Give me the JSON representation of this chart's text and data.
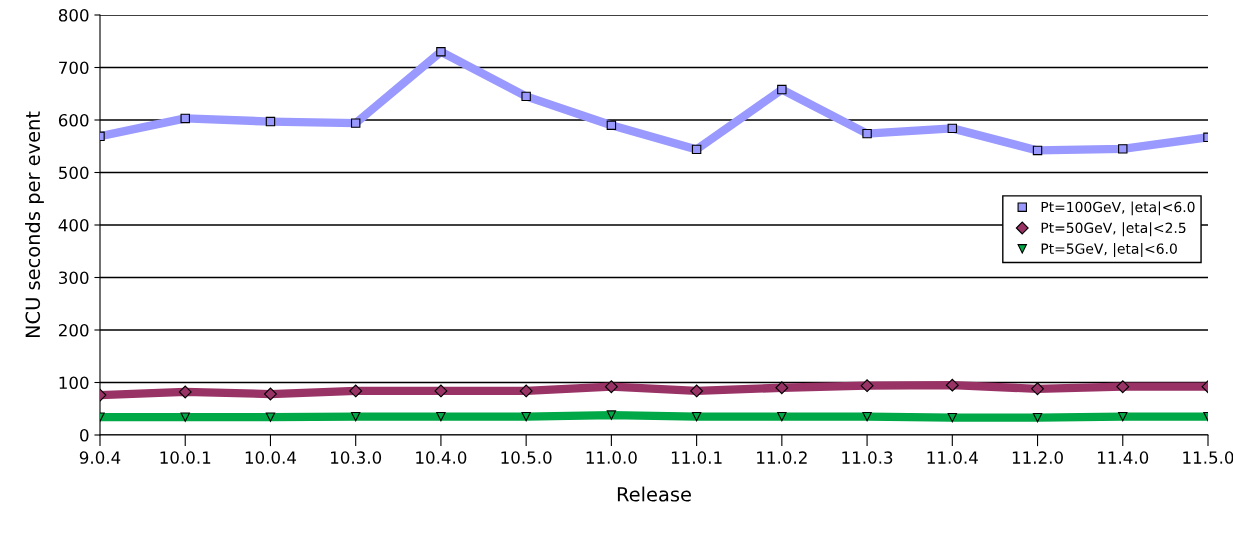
{
  "chart_data": {
    "type": "line",
    "xlabel": "Release",
    "ylabel": "NCU seconds per event",
    "categories": [
      "9.0.4",
      "10.0.1",
      "10.0.4",
      "10.3.0",
      "10.4.0",
      "10.5.0",
      "11.0.0",
      "11.0.1",
      "11.0.2",
      "11.0.3",
      "11.0.4",
      "11.2.0",
      "11.4.0",
      "11.5.0"
    ],
    "series": [
      {
        "name": "Pt=100GeV, |eta|<6.0",
        "color": "#9999ff",
        "marker": "square",
        "values": [
          569,
          603,
          597,
          594,
          730,
          645,
          590,
          544,
          658,
          574,
          584,
          542,
          545,
          567
        ]
      },
      {
        "name": "Pt=50GeV, |eta|<2.5",
        "color": "#993366",
        "marker": "diamond",
        "values": [
          76,
          82,
          78,
          84,
          84,
          84,
          92,
          84,
          90,
          94,
          95,
          88,
          92,
          92
        ]
      },
      {
        "name": "Pt=5GeV, |eta|<6.0",
        "color": "#00a848",
        "marker": "triangle",
        "values": [
          34,
          34,
          34,
          35,
          35,
          35,
          38,
          35,
          35,
          35,
          33,
          33,
          35,
          35
        ]
      }
    ],
    "ylim": [
      0,
      800
    ],
    "yticks": [
      0,
      100,
      200,
      300,
      400,
      500,
      600,
      700,
      800
    ],
    "grid": "y",
    "legend": "right"
  }
}
